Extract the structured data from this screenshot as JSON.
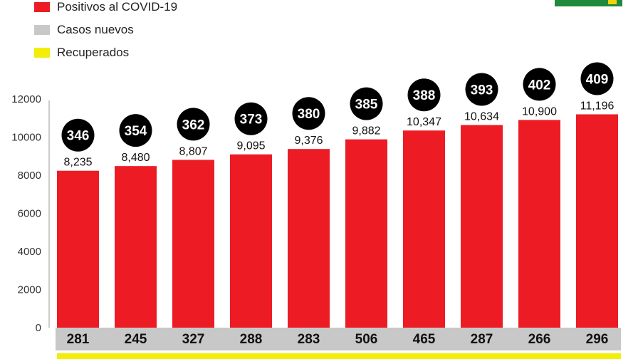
{
  "legend": [
    {
      "label": "Positivos al COVID-19",
      "color": "#ed1c24"
    },
    {
      "label": "Casos nuevos",
      "color": "#c8c8c8"
    },
    {
      "label": "Recuperados",
      "color": "#f2ee0a"
    }
  ],
  "chart_data": {
    "type": "bar",
    "title": "",
    "xlabel": "",
    "ylabel": "",
    "ylim": [
      0,
      12000
    ],
    "yticks": [
      "0",
      "2000",
      "4000",
      "6000",
      "8000",
      "10000",
      "12000"
    ],
    "grid": false,
    "legend_position": "top-left",
    "series": [
      {
        "name": "Positivos al COVID-19",
        "color": "#ed1c24",
        "values": [
          8235,
          8480,
          8807,
          9095,
          9376,
          9882,
          10347,
          10634,
          10900,
          11196
        ],
        "labels": [
          "8,235",
          "8,480",
          "8,807",
          "9,095",
          "9,376",
          "9,882",
          "10,347",
          "10,634",
          "10,900",
          "11,196"
        ]
      },
      {
        "name": "Casos nuevos",
        "color": "#c8c8c8",
        "values": [
          281,
          245,
          327,
          288,
          283,
          506,
          465,
          287,
          266,
          296
        ]
      },
      {
        "name": "Recuperados",
        "color": "#f2ee0a",
        "values": []
      }
    ],
    "circle_values": [
      346,
      354,
      362,
      373,
      380,
      385,
      388,
      393,
      402,
      409
    ],
    "circle_color": "#000000"
  }
}
